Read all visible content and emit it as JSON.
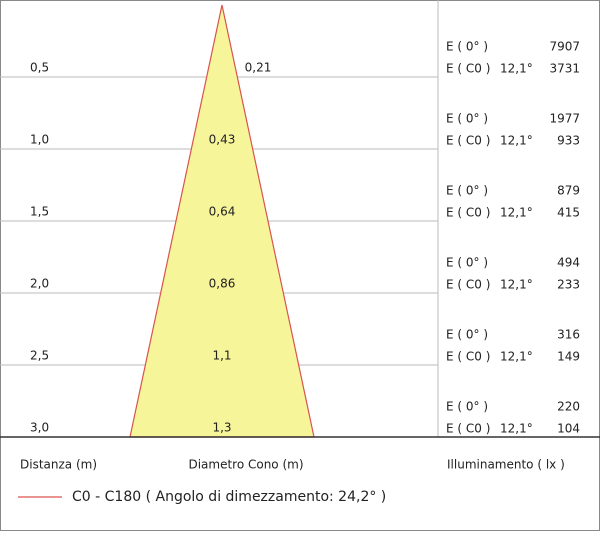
{
  "rows": [
    {
      "distance": "0,5",
      "diameter": "0,21",
      "e0_label": "E ( 0° )",
      "e0": 7907,
      "ec0_label": "E ( C0 )",
      "angle": "12,1°",
      "ec0": 3731
    },
    {
      "distance": "1,0",
      "diameter": "0,43",
      "e0_label": "E ( 0° )",
      "e0": 1977,
      "ec0_label": "E ( C0 )",
      "angle": "12,1°",
      "ec0": 933
    },
    {
      "distance": "1,5",
      "diameter": "0,64",
      "e0_label": "E ( 0° )",
      "e0": 879,
      "ec0_label": "E ( C0 )",
      "angle": "12,1°",
      "ec0": 415
    },
    {
      "distance": "2,0",
      "diameter": "0,86",
      "e0_label": "E ( 0° )",
      "e0": 494,
      "ec0_label": "E ( C0 )",
      "angle": "12,1°",
      "ec0": 233
    },
    {
      "distance": "2,5",
      "diameter": "1,1",
      "e0_label": "E ( 0° )",
      "e0": 316,
      "ec0_label": "E ( C0 )",
      "angle": "12,1°",
      "ec0": 149
    },
    {
      "distance": "3,0",
      "diameter": "1,3",
      "e0_label": "E ( 0° )",
      "e0": 220,
      "ec0_label": "E ( C0 )",
      "angle": "12,1°",
      "ec0": 104
    }
  ],
  "footer": {
    "distance_label": "Distanza (m)",
    "diameter_label": "Diametro Cono (m)",
    "illuminance_label": "Illuminamento ( lx )"
  },
  "legend": {
    "label": "C0 - C180  ( Angolo di dimezzamento: 24,2° )"
  }
}
